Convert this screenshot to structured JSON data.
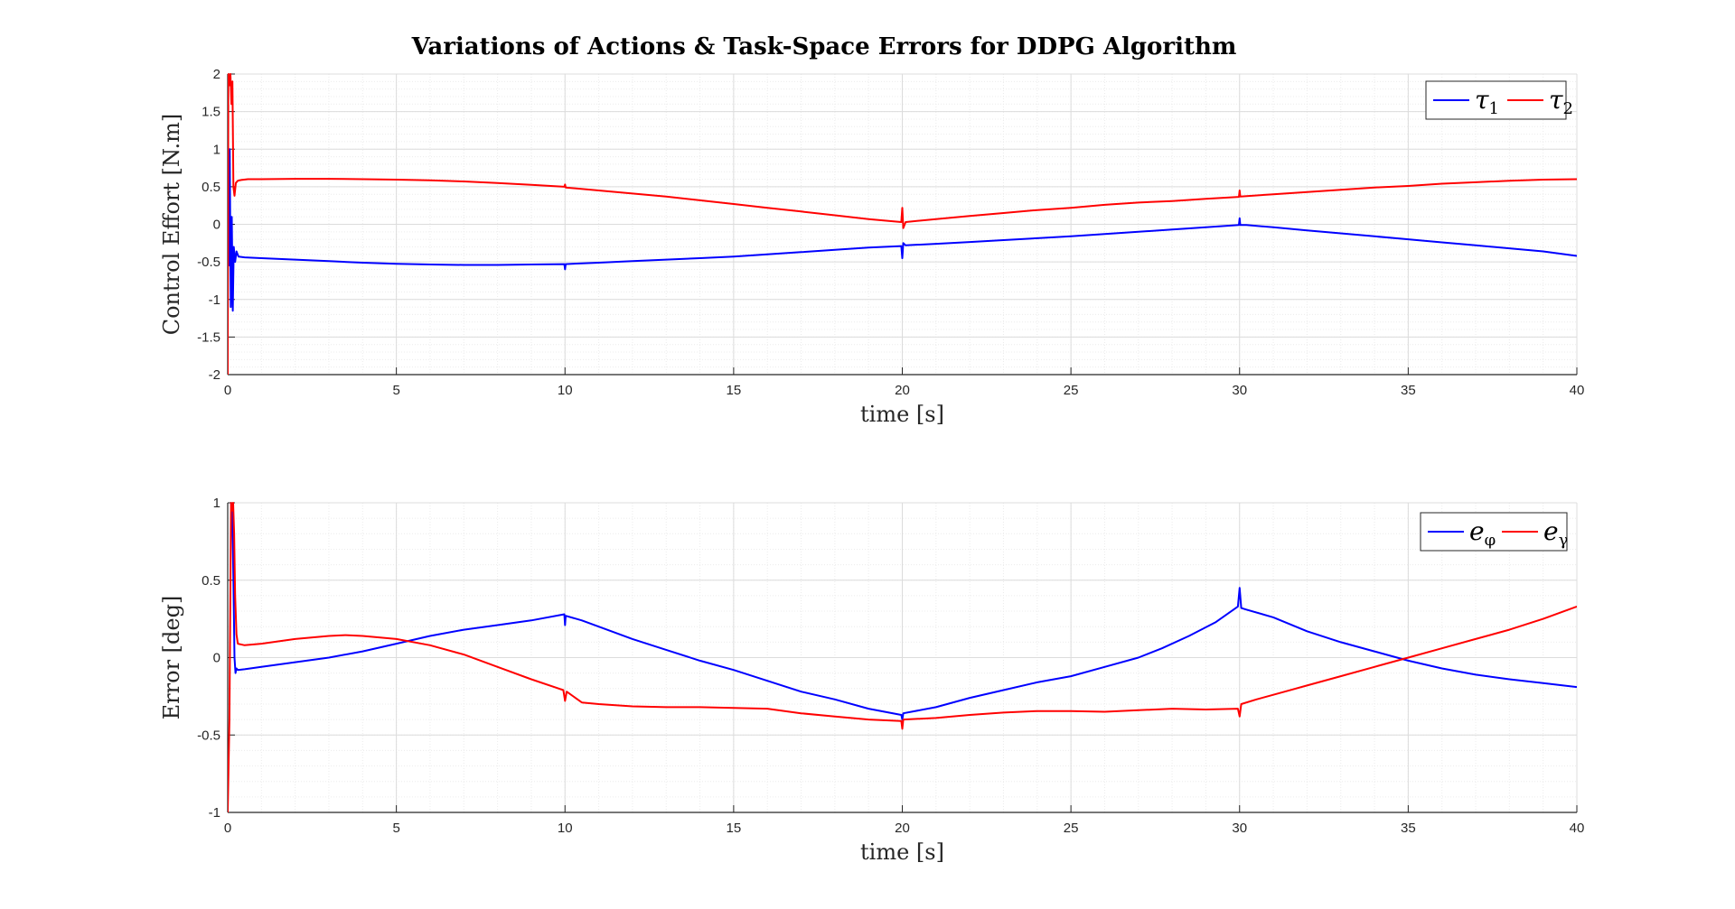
{
  "title": "Variations of Actions & Task-Space Errors for DDPG Algorithm",
  "chart_data": [
    {
      "type": "line",
      "xlabel": "time [s]",
      "ylabel": "Control Effort [N.m]",
      "xlim": [
        0,
        40
      ],
      "ylim": [
        -2,
        2
      ],
      "xticks": [
        "0",
        "5",
        "10",
        "15",
        "20",
        "25",
        "30",
        "35",
        "40"
      ],
      "yticks": [
        "-2",
        "-1.5",
        "-1",
        "-0.5",
        "0",
        "0.5",
        "1",
        "1.5",
        "2"
      ],
      "grid": true,
      "minor_grid": true,
      "legend_position": "top-right",
      "series": [
        {
          "name": "τ1",
          "label_base": "τ",
          "label_sub": "1",
          "color": "#0000ff",
          "x": [
            0,
            0.03,
            0.06,
            0.09,
            0.12,
            0.15,
            0.18,
            0.22,
            0.26,
            0.32,
            0.5,
            1,
            2,
            3,
            4,
            5,
            6,
            7,
            8,
            9,
            9.98,
            10.0,
            10.02,
            10.2,
            11,
            12,
            13,
            14,
            15,
            16,
            17,
            18,
            19,
            19.97,
            20.0,
            20.03,
            20.1,
            21,
            22,
            23,
            24,
            25,
            26,
            27,
            28,
            29,
            29.98,
            30.0,
            30.02,
            30.2,
            31,
            32,
            33,
            34,
            35,
            36,
            37,
            38,
            39,
            40
          ],
          "y": [
            0.0,
            -0.55,
            1.0,
            -1.1,
            0.1,
            -1.15,
            -0.3,
            -0.5,
            -0.36,
            -0.43,
            -0.44,
            -0.45,
            -0.47,
            -0.49,
            -0.51,
            -0.525,
            -0.535,
            -0.54,
            -0.54,
            -0.535,
            -0.53,
            -0.6,
            -0.53,
            -0.525,
            -0.51,
            -0.49,
            -0.47,
            -0.45,
            -0.43,
            -0.4,
            -0.37,
            -0.34,
            -0.31,
            -0.29,
            -0.45,
            -0.25,
            -0.28,
            -0.26,
            -0.235,
            -0.21,
            -0.185,
            -0.16,
            -0.13,
            -0.1,
            -0.07,
            -0.04,
            -0.01,
            0.08,
            -0.01,
            -0.01,
            -0.04,
            -0.08,
            -0.12,
            -0.16,
            -0.2,
            -0.24,
            -0.28,
            -0.32,
            -0.36,
            -0.42
          ]
        },
        {
          "name": "τ2",
          "label_base": "τ",
          "label_sub": "2",
          "color": "#ff0000",
          "x": [
            0,
            0.02,
            0.05,
            0.08,
            0.11,
            0.14,
            0.17,
            0.2,
            0.24,
            0.3,
            0.4,
            0.6,
            1,
            2,
            3,
            4,
            5,
            6,
            7,
            8,
            9,
            9.98,
            10.0,
            10.02,
            11,
            12,
            13,
            14,
            15,
            16,
            17,
            18,
            19,
            19.97,
            20.0,
            20.03,
            20.1,
            21,
            22,
            23,
            24,
            25,
            26,
            27,
            28,
            29,
            29.98,
            30.0,
            30.02,
            31,
            32,
            33,
            34,
            35,
            36,
            37,
            38,
            39,
            40
          ],
          "y": [
            -2.0,
            2.0,
            1.85,
            2.0,
            1.6,
            1.9,
            0.5,
            0.38,
            0.55,
            0.58,
            0.59,
            0.6,
            0.6,
            0.605,
            0.605,
            0.6,
            0.595,
            0.585,
            0.57,
            0.55,
            0.525,
            0.5,
            0.53,
            0.49,
            0.45,
            0.41,
            0.37,
            0.32,
            0.27,
            0.22,
            0.17,
            0.12,
            0.07,
            0.03,
            0.22,
            -0.05,
            0.03,
            0.07,
            0.11,
            0.15,
            0.19,
            0.22,
            0.26,
            0.29,
            0.31,
            0.34,
            0.365,
            0.45,
            0.37,
            0.4,
            0.43,
            0.46,
            0.49,
            0.51,
            0.54,
            0.56,
            0.58,
            0.595,
            0.6
          ]
        }
      ]
    },
    {
      "type": "line",
      "xlabel": "time [s]",
      "ylabel": "Error [deg]",
      "xlim": [
        0,
        40
      ],
      "ylim": [
        -1,
        1
      ],
      "xticks": [
        "0",
        "5",
        "10",
        "15",
        "20",
        "25",
        "30",
        "35",
        "40"
      ],
      "yticks": [
        "-1",
        "-0.5",
        "0",
        "0.5",
        "1"
      ],
      "grid": true,
      "minor_grid": true,
      "legend_position": "top-right",
      "series": [
        {
          "name": "eφ",
          "label_base": "e",
          "label_sub": "φ",
          "color": "#0000ff",
          "x": [
            0.1,
            0.14,
            0.17,
            0.2,
            0.23,
            0.26,
            0.3,
            0.5,
            1,
            2,
            3,
            4,
            5,
            6,
            7,
            8,
            9,
            9.98,
            10.0,
            10.02,
            10.5,
            11,
            12,
            13,
            14,
            15,
            16,
            17,
            18,
            19,
            19.97,
            20.0,
            20.03,
            21,
            22,
            23,
            24,
            25,
            26,
            27,
            27.7,
            28.5,
            29.3,
            29.95,
            30.0,
            30.05,
            30.2,
            31,
            32,
            33,
            34,
            35,
            36,
            37,
            38,
            39,
            40
          ],
          "y": [
            1.0,
            0.9,
            0.5,
            0.0,
            -0.1,
            -0.07,
            -0.08,
            -0.075,
            -0.06,
            -0.03,
            0.0,
            0.04,
            0.09,
            0.14,
            0.18,
            0.21,
            0.24,
            0.28,
            0.21,
            0.27,
            0.24,
            0.2,
            0.12,
            0.05,
            -0.02,
            -0.08,
            -0.15,
            -0.22,
            -0.27,
            -0.33,
            -0.37,
            -0.4,
            -0.36,
            -0.32,
            -0.26,
            -0.21,
            -0.16,
            -0.12,
            -0.06,
            0.0,
            0.06,
            0.14,
            0.23,
            0.33,
            0.45,
            0.32,
            0.31,
            0.26,
            0.17,
            0.1,
            0.04,
            -0.02,
            -0.07,
            -0.11,
            -0.14,
            -0.165,
            -0.19
          ]
        },
        {
          "name": "eγ",
          "label_base": "e",
          "label_sub": "γ",
          "color": "#ff0000",
          "x": [
            0.0,
            0.05,
            0.1,
            0.13,
            0.16,
            0.19,
            0.22,
            0.26,
            0.3,
            0.5,
            1,
            2,
            3,
            3.5,
            4,
            5,
            6,
            7,
            8,
            9,
            9.95,
            10.0,
            10.05,
            10.5,
            11,
            12,
            13,
            14,
            15,
            16,
            17,
            18,
            19,
            19.97,
            20.0,
            20.03,
            21,
            22,
            23,
            24,
            25,
            26,
            27,
            28,
            29,
            29.95,
            30.0,
            30.05,
            30.5,
            31,
            32,
            33,
            34,
            35,
            36,
            37,
            38,
            39,
            40
          ],
          "y": [
            -1.0,
            -0.4,
            1.0,
            0.95,
            1.0,
            0.8,
            0.4,
            0.15,
            0.09,
            0.08,
            0.09,
            0.12,
            0.14,
            0.145,
            0.14,
            0.12,
            0.08,
            0.02,
            -0.06,
            -0.14,
            -0.21,
            -0.28,
            -0.22,
            -0.29,
            -0.3,
            -0.315,
            -0.32,
            -0.32,
            -0.325,
            -0.33,
            -0.36,
            -0.38,
            -0.4,
            -0.41,
            -0.46,
            -0.4,
            -0.39,
            -0.37,
            -0.355,
            -0.345,
            -0.345,
            -0.35,
            -0.34,
            -0.33,
            -0.335,
            -0.33,
            -0.38,
            -0.3,
            -0.27,
            -0.24,
            -0.18,
            -0.12,
            -0.06,
            0.0,
            0.06,
            0.12,
            0.18,
            0.25,
            0.33
          ]
        }
      ]
    }
  ]
}
